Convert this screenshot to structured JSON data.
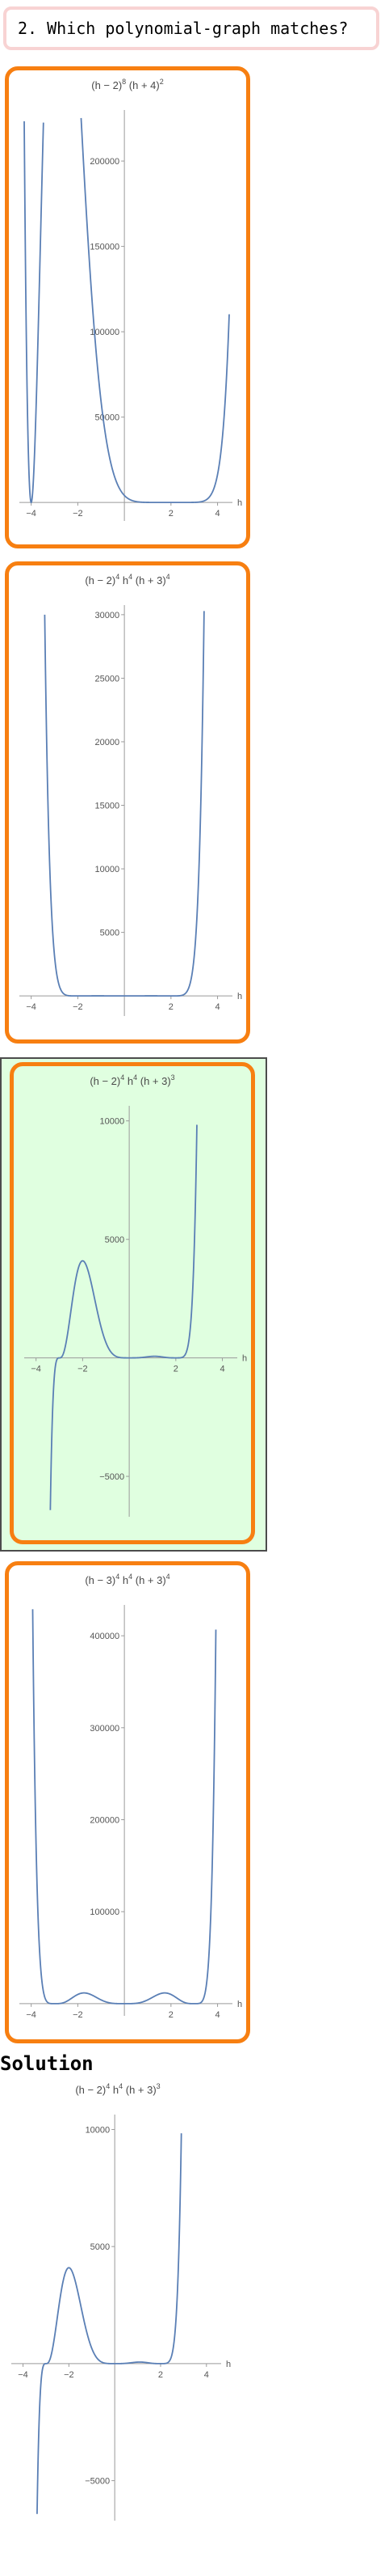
{
  "question": {
    "text": "2. Which polynomial-graph matches?"
  },
  "solution": {
    "title": "Solution"
  },
  "colors": {
    "option_border": "#f77f11",
    "selected_bg": "#e0ffe0",
    "curve": "#5a7fb5",
    "question_border": "#f8d3d3"
  },
  "chart_data": [
    {
      "id": "option-1",
      "type": "line",
      "title": "",
      "equation_parts": [
        "(h − 2)",
        "8",
        " (h + 4)",
        "2"
      ],
      "xlabel": "h",
      "xlim": [
        -4.3,
        4.5
      ],
      "ylim": [
        -8000,
        228000
      ],
      "x_ticks": [
        -4,
        -2,
        2,
        4
      ],
      "x_tick_labels": [
        "−4",
        "−2",
        "2",
        "4"
      ],
      "y_ticks": [
        50000,
        100000,
        150000,
        200000
      ],
      "y_tick_labels": [
        "50000",
        "100000",
        "150000",
        "200000"
      ],
      "formula": "p8_4"
    },
    {
      "id": "option-2",
      "type": "line",
      "title": "",
      "equation_parts": [
        "(h − 2)",
        "4",
        " h",
        "4",
        " (h + 3)",
        "4"
      ],
      "xlabel": "h",
      "xlim": [
        -4.3,
        4.5
      ],
      "ylim": [
        -1200,
        30500
      ],
      "x_ticks": [
        -4,
        -2,
        2,
        4
      ],
      "x_tick_labels": [
        "−4",
        "−2",
        "2",
        "4"
      ],
      "y_ticks": [
        5000,
        10000,
        15000,
        20000,
        25000,
        30000
      ],
      "y_tick_labels": [
        "5000",
        "10000",
        "15000",
        "20000",
        "25000",
        "30000"
      ],
      "formula": "p444_2"
    },
    {
      "id": "option-3",
      "type": "line",
      "title": "",
      "selected": true,
      "equation_parts": [
        "(h − 2)",
        "4",
        " h",
        "4",
        " (h + 3)",
        "3"
      ],
      "xlabel": "h",
      "xlim": [
        -4.3,
        4.5
      ],
      "ylim": [
        -6500,
        10500
      ],
      "x_ticks": [
        -4,
        -2,
        2,
        4
      ],
      "x_tick_labels": [
        "−4",
        "−2",
        "2",
        "4"
      ],
      "y_ticks": [
        -5000,
        5000,
        10000
      ],
      "y_tick_labels": [
        "−5000",
        "5000",
        "10000"
      ],
      "formula": "p443"
    },
    {
      "id": "option-4",
      "type": "line",
      "title": "",
      "equation_parts": [
        "(h − 3)",
        "4",
        " h",
        "4",
        " (h + 3)",
        "4"
      ],
      "xlabel": "h",
      "xlim": [
        -4.3,
        4.5
      ],
      "ylim": [
        -8000,
        430000
      ],
      "x_ticks": [
        -4,
        -2,
        2,
        4
      ],
      "x_tick_labels": [
        "−4",
        "−2",
        "2",
        "4"
      ],
      "y_ticks": [
        100000,
        200000,
        300000,
        400000
      ],
      "y_tick_labels": [
        "100000",
        "200000",
        "300000",
        "400000"
      ],
      "formula": "p444_3"
    },
    {
      "id": "solution",
      "type": "line",
      "title": "",
      "equation_parts": [
        "(h − 2)",
        "4",
        " h",
        "4",
        " (h + 3)",
        "3"
      ],
      "xlabel": "h",
      "xlim": [
        -4.3,
        4.5
      ],
      "ylim": [
        -6500,
        10500
      ],
      "x_ticks": [
        -4,
        -2,
        2,
        4
      ],
      "x_tick_labels": [
        "−4",
        "−2",
        "2",
        "4"
      ],
      "y_ticks": [
        -5000,
        5000,
        10000
      ],
      "y_tick_labels": [
        "−5000",
        "5000",
        "10000"
      ],
      "formula": "p443"
    }
  ]
}
